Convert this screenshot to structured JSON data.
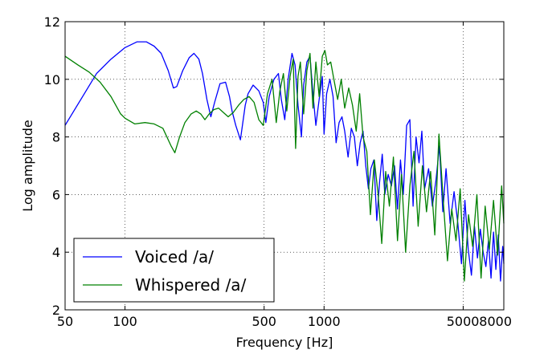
{
  "chart_data": {
    "type": "line",
    "title": "",
    "xlabel": "Frequency [Hz]",
    "ylabel": "Log amplitude",
    "xscale": "log",
    "xlim": [
      50,
      8000
    ],
    "ylim": [
      2,
      12
    ],
    "xticks": [
      {
        "value": 50,
        "label": "50"
      },
      {
        "value": 100,
        "label": "100"
      },
      {
        "value": 500,
        "label": "500"
      },
      {
        "value": 1000,
        "label": "1000"
      },
      {
        "value": 5000,
        "label": "5000"
      },
      {
        "value": 8000,
        "label": "8000"
      }
    ],
    "yticks": [
      {
        "value": 2,
        "label": "2"
      },
      {
        "value": 4,
        "label": "4"
      },
      {
        "value": 6,
        "label": "6"
      },
      {
        "value": 8,
        "label": "8"
      },
      {
        "value": 10,
        "label": "10"
      },
      {
        "value": 12,
        "label": "12"
      }
    ],
    "grid": true,
    "grid_style": "dotted",
    "legend_position": "bottom-left",
    "series": [
      {
        "name": "Voiced /a/",
        "color": "#0000ff",
        "x": [
          50,
          60,
          72,
          85,
          100,
          115,
          128,
          140,
          152,
          165,
          175,
          182,
          195,
          210,
          222,
          235,
          245,
          258,
          270,
          282,
          300,
          320,
          335,
          345,
          360,
          380,
          402,
          415,
          440,
          470,
          495,
          510,
          530,
          560,
          590,
          610,
          635,
          660,
          690,
          715,
          740,
          770,
          790,
          820,
          850,
          880,
          910,
          945,
          980,
          1000,
          1030,
          1070,
          1110,
          1150,
          1190,
          1230,
          1270,
          1320,
          1370,
          1420,
          1470,
          1520,
          1570,
          1620,
          1670,
          1720,
          1780,
          1840,
          1900,
          1960,
          2020,
          2100,
          2180,
          2260,
          2340,
          2420,
          2500,
          2600,
          2700,
          2800,
          2900,
          3000,
          3100,
          3200,
          3350,
          3500,
          3650,
          3800,
          3950,
          4100,
          4300,
          4500,
          4700,
          4900,
          5100,
          5300,
          5500,
          5700,
          5900,
          6100,
          6300,
          6500,
          6700,
          6900,
          7100,
          7300,
          7500,
          7700,
          7900,
          8000
        ],
        "y": [
          8.4,
          9.3,
          10.2,
          10.7,
          11.1,
          11.3,
          11.3,
          11.15,
          10.9,
          10.3,
          9.7,
          9.75,
          10.3,
          10.75,
          10.9,
          10.7,
          10.2,
          9.3,
          8.7,
          9.2,
          9.85,
          9.9,
          9.4,
          8.9,
          8.4,
          7.9,
          9.1,
          9.5,
          9.8,
          9.6,
          9.2,
          8.5,
          9.4,
          10.0,
          10.2,
          9.3,
          8.6,
          10.0,
          10.9,
          10.5,
          9.1,
          8.0,
          9.8,
          10.6,
          10.8,
          9.5,
          8.4,
          9.3,
          10.1,
          8.1,
          9.5,
          10.0,
          9.4,
          7.8,
          8.5,
          8.7,
          8.2,
          7.3,
          8.3,
          8.0,
          7.0,
          7.8,
          8.2,
          7.0,
          6.2,
          6.9,
          7.2,
          5.1,
          6.4,
          7.4,
          6.0,
          6.7,
          6.3,
          7.0,
          5.5,
          7.2,
          6.0,
          8.4,
          8.6,
          5.6,
          8.0,
          7.1,
          8.2,
          6.2,
          6.9,
          5.6,
          6.5,
          7.7,
          5.4,
          6.9,
          5.0,
          6.1,
          5.0,
          3.6,
          5.8,
          4.1,
          3.2,
          4.9,
          3.8,
          4.8,
          4.0,
          3.5,
          4.4,
          3.1,
          4.7,
          3.4,
          4.6,
          3.0,
          4.2,
          3.6
        ]
      },
      {
        "name": "Whispered /a/",
        "color": "#008000",
        "x": [
          50,
          58,
          66,
          75,
          85,
          95,
          100,
          112,
          126,
          140,
          155,
          170,
          178,
          188,
          200,
          215,
          228,
          240,
          252,
          265,
          280,
          295,
          312,
          330,
          350,
          372,
          395,
          420,
          445,
          470,
          495,
          520,
          548,
          575,
          600,
          625,
          650,
          675,
          700,
          720,
          740,
          760,
          790,
          820,
          850,
          880,
          910,
          945,
          980,
          1010,
          1040,
          1080,
          1120,
          1170,
          1220,
          1270,
          1330,
          1390,
          1450,
          1510,
          1570,
          1640,
          1710,
          1790,
          1870,
          1950,
          2040,
          2130,
          2230,
          2340,
          2450,
          2570,
          2700,
          2830,
          2970,
          3120,
          3270,
          3430,
          3600,
          3780,
          3970,
          4170,
          4380,
          4600,
          4830,
          5070,
          5320,
          5580,
          5860,
          6150,
          6450,
          6770,
          7100,
          7450,
          7800,
          8000
        ],
        "y": [
          10.8,
          10.5,
          10.25,
          9.9,
          9.4,
          8.8,
          8.65,
          8.45,
          8.5,
          8.45,
          8.3,
          7.7,
          7.45,
          8.0,
          8.5,
          8.8,
          8.9,
          8.8,
          8.6,
          8.8,
          8.95,
          9.0,
          8.85,
          8.7,
          8.85,
          9.1,
          9.3,
          9.4,
          9.2,
          8.6,
          8.4,
          9.5,
          10.0,
          8.5,
          9.6,
          10.2,
          8.9,
          10.1,
          10.7,
          7.6,
          10.1,
          10.6,
          8.8,
          10.3,
          10.9,
          9.0,
          10.6,
          9.4,
          10.8,
          11.0,
          10.5,
          10.6,
          10.0,
          9.3,
          10.0,
          9.0,
          9.7,
          9.1,
          8.2,
          9.5,
          8.0,
          7.5,
          5.3,
          7.2,
          6.0,
          4.3,
          6.8,
          5.6,
          7.3,
          4.4,
          6.7,
          4.0,
          6.3,
          7.5,
          4.9,
          7.0,
          5.4,
          6.8,
          4.6,
          8.1,
          5.8,
          3.7,
          5.5,
          4.4,
          6.2,
          3.0,
          5.3,
          4.2,
          6.0,
          3.1,
          5.6,
          4.1,
          5.8,
          3.9,
          6.3,
          5.0
        ]
      }
    ]
  }
}
